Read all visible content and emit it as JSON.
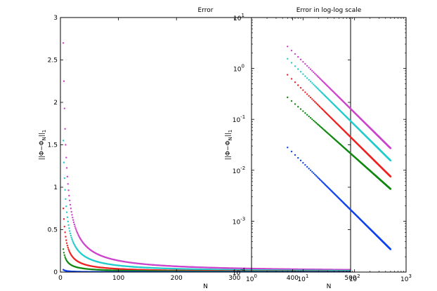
{
  "chart_data": [
    {
      "type": "scatter",
      "title": "Error",
      "xlabel": "N",
      "ylabel": "||Φ−Φ_N||_1",
      "xlim": [
        0,
        500
      ],
      "ylim": [
        0,
        3
      ],
      "xticks": [
        "0",
        "100",
        "200",
        "300",
        "400",
        "500"
      ],
      "yticks": [
        "0",
        "0.5",
        "1",
        "1.5",
        "2",
        "2.5",
        "3"
      ],
      "xscale": "linear",
      "yscale": "linear",
      "grid": false,
      "series": [
        {
          "color": "#cc44cc",
          "a": 2.7,
          "exponent": -1.0,
          "n_start": 5,
          "n_end": 500
        },
        {
          "color": "#22cccc",
          "a": 1.55,
          "exponent": -1.0,
          "n_start": 5,
          "n_end": 500
        },
        {
          "color": "#ee2222",
          "a": 0.75,
          "exponent": -1.0,
          "n_start": 5,
          "n_end": 500
        },
        {
          "color": "#118811",
          "a": 0.27,
          "exponent": -0.9,
          "n_start": 5,
          "n_end": 500
        },
        {
          "color": "#1144ee",
          "a": 0.028,
          "exponent": -1.0,
          "n_start": 5,
          "n_end": 500
        }
      ]
    },
    {
      "type": "scatter",
      "title": "Error in log-log scale",
      "xlabel": "N",
      "ylabel": "||Φ−Φ_N||_1",
      "xlim": [
        1,
        1000
      ],
      "ylim": [
        0.0001,
        10
      ],
      "xticks": [
        {
          "base": "10",
          "exp": "0"
        },
        {
          "base": "10",
          "exp": "1"
        },
        {
          "base": "10",
          "exp": "2"
        },
        {
          "base": "10",
          "exp": "3"
        }
      ],
      "yticks": [
        {
          "base": "10",
          "exp": "-4"
        },
        {
          "base": "10",
          "exp": "-3"
        },
        {
          "base": "10",
          "exp": "-2"
        },
        {
          "base": "10",
          "exp": "-1"
        },
        {
          "base": "10",
          "exp": "0"
        },
        {
          "base": "10",
          "exp": "1"
        }
      ],
      "xscale": "log",
      "yscale": "log",
      "grid": false,
      "series": [
        {
          "color": "#cc44cc",
          "a": 2.7,
          "exponent": -1.0,
          "n_start": 5,
          "n_end": 500
        },
        {
          "color": "#22cccc",
          "a": 1.55,
          "exponent": -1.0,
          "n_start": 5,
          "n_end": 500
        },
        {
          "color": "#ee2222",
          "a": 0.75,
          "exponent": -1.0,
          "n_start": 5,
          "n_end": 500
        },
        {
          "color": "#118811",
          "a": 0.27,
          "exponent": -0.9,
          "n_start": 5,
          "n_end": 500
        },
        {
          "color": "#1144ee",
          "a": 0.028,
          "exponent": -1.0,
          "n_start": 5,
          "n_end": 500
        }
      ]
    }
  ]
}
